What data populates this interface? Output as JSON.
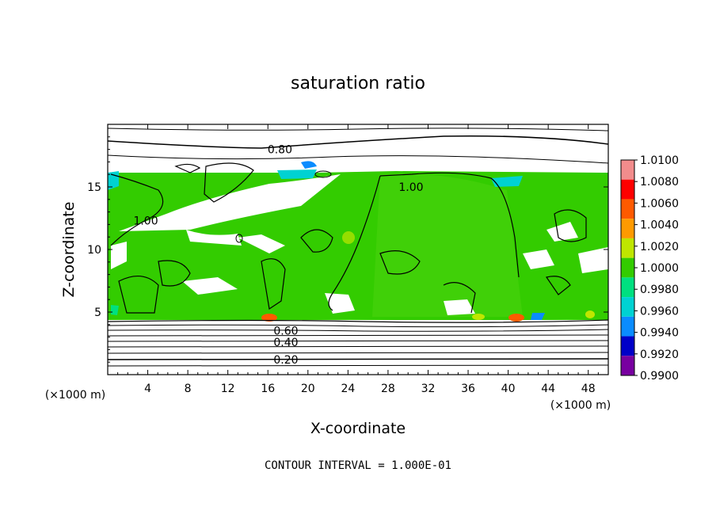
{
  "chart_data": {
    "type": "heatmap",
    "title": "saturation ratio",
    "xlabel": "X-coordinate",
    "ylabel": "Z-coordinate",
    "x_unit": "(×1000 m)",
    "z_unit": "(×1000 m)",
    "xlim": [
      0,
      50
    ],
    "ylim": [
      0,
      20
    ],
    "x_ticks": [
      4,
      8,
      12,
      16,
      20,
      24,
      28,
      32,
      36,
      40,
      44,
      48
    ],
    "y_ticks": [
      5,
      10,
      15
    ],
    "colorbar": {
      "levels": [
        "1.0100",
        "1.0080",
        "1.0060",
        "1.0040",
        "1.0020",
        "1.0000",
        "0.9980",
        "0.9960",
        "0.9940",
        "0.9920",
        "0.9900"
      ],
      "colors": [
        "#f28c8c",
        "#ff0000",
        "#ff5a00",
        "#ff9a00",
        "#bfe600",
        "#33cc00",
        "#00e080",
        "#00d2d2",
        "#0a8cff",
        "#0000c8",
        "#7800a0"
      ]
    },
    "contour_labels": [
      {
        "text": "0.80",
        "x": 17.2,
        "z": 18.0
      },
      {
        "text": "1.00",
        "x": 30.3,
        "z": 15.0
      },
      {
        "text": "1.00",
        "x": 3.8,
        "z": 12.3
      },
      {
        "text": "0.20",
        "x": 17.8,
        "z": 1.2
      },
      {
        "text": "0.40",
        "x": 17.8,
        "z": 2.6
      },
      {
        "text": "0.60",
        "x": 17.8,
        "z": 3.5
      }
    ],
    "footer": "CONTOUR INTERVAL = 1.000E-01"
  }
}
